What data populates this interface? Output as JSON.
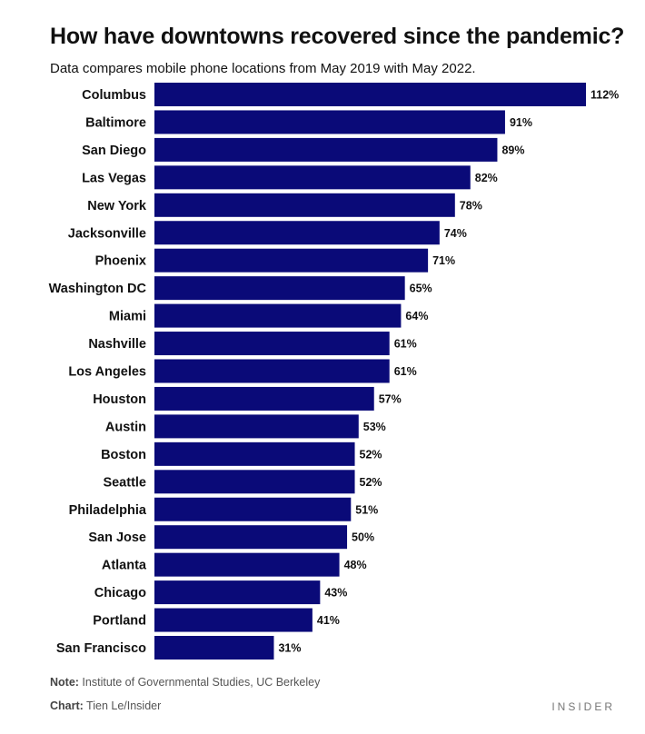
{
  "chart_data": {
    "type": "bar",
    "orientation": "horizontal",
    "title": "How have downtowns recovered since the pandemic?",
    "subtitle": "Data compares mobile phone locations from May 2019 with May 2022.",
    "categories": [
      "Columbus",
      "Baltimore",
      "San Diego",
      "Las Vegas",
      "New York",
      "Jacksonville",
      "Phoenix",
      "Washington DC",
      "Miami",
      "Nashville",
      "Los Angeles",
      "Houston",
      "Austin",
      "Boston",
      "Seattle",
      "Philadelphia",
      "San Jose",
      "Atlanta",
      "Chicago",
      "Portland",
      "San Francisco"
    ],
    "values": [
      112,
      91,
      89,
      82,
      78,
      74,
      71,
      65,
      64,
      61,
      61,
      57,
      53,
      52,
      52,
      51,
      50,
      48,
      43,
      41,
      31
    ],
    "value_labels": [
      "112%",
      "91%",
      "89%",
      "82%",
      "78%",
      "74%",
      "71%",
      "65%",
      "64%",
      "61%",
      "61%",
      "57%",
      "53%",
      "52%",
      "52%",
      "51%",
      "50%",
      "48%",
      "43%",
      "41%",
      "31%"
    ],
    "xlim": [
      0,
      112
    ],
    "bar_color": "#0a0a78",
    "grid": false,
    "legend": "none"
  },
  "footer": {
    "note_label": "Note:",
    "note_text": " Institute of Governmental Studies, UC Berkeley",
    "credit_label": "Chart:",
    "credit_text": " Tien Le/Insider",
    "brand": "INSIDER"
  }
}
